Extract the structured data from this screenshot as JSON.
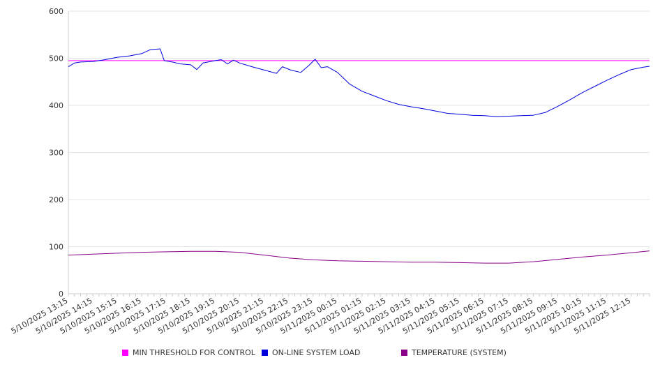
{
  "chart_data": {
    "type": "line",
    "title": "",
    "xlabel": "",
    "ylabel": "",
    "ylim": [
      0,
      600
    ],
    "y_ticks": [
      "0",
      "100",
      "200",
      "300",
      "400",
      "500",
      "600"
    ],
    "x_ticks": [
      "5/10/2025 13:15",
      "5/10/2025 14:15",
      "5/10/2025 15:15",
      "5/10/2025 16:15",
      "5/10/2025 17:15",
      "5/10/2025 18:15",
      "5/10/2025 19:15",
      "5/10/2025 20:15",
      "5/10/2025 21:15",
      "5/10/2025 22:15",
      "5/10/2025 23:15",
      "5/11/2025 00:15",
      "5/11/2025 01:15",
      "5/11/2025 02:15",
      "5/11/2025 03:15",
      "5/11/2025 04:15",
      "5/11/2025 05:15",
      "5/11/2025 06:15",
      "5/11/2025 07:15",
      "5/11/2025 08:15",
      "5/11/2025 09:15",
      "5/11/2025 10:15",
      "5/11/2025 11:15",
      "5/11/2025 12:15"
    ],
    "x_range": [
      "5/10/2025 13:15",
      "5/11/2025 13:00"
    ],
    "grid": "horizontal",
    "legend_position": "bottom",
    "series": [
      {
        "name": "MIN THRESHOLD FOR CONTROL",
        "color": "#ff00ff",
        "points": [
          [
            "5/10/2025 13:15",
            495
          ],
          [
            "5/11/2025 13:00",
            495
          ]
        ]
      },
      {
        "name": "ON-LINE SYSTEM LOAD",
        "color": "#0000dd",
        "points": [
          [
            "5/10/2025 13:15",
            482
          ],
          [
            "5/10/2025 13:30",
            490
          ],
          [
            "5/10/2025 13:45",
            492
          ],
          [
            "5/10/2025 14:15",
            493
          ],
          [
            "5/10/2025 14:45",
            497
          ],
          [
            "5/10/2025 15:15",
            502
          ],
          [
            "5/10/2025 15:45",
            505
          ],
          [
            "5/10/2025 16:15",
            510
          ],
          [
            "5/10/2025 16:35",
            518
          ],
          [
            "5/10/2025 17:00",
            520
          ],
          [
            "5/10/2025 17:10",
            495
          ],
          [
            "5/10/2025 17:30",
            492
          ],
          [
            "5/10/2025 17:50",
            488
          ],
          [
            "5/10/2025 18:15",
            486
          ],
          [
            "5/10/2025 18:30",
            476
          ],
          [
            "5/10/2025 18:45",
            490
          ],
          [
            "5/10/2025 19:15",
            495
          ],
          [
            "5/10/2025 19:30",
            497
          ],
          [
            "5/10/2025 19:45",
            488
          ],
          [
            "5/10/2025 20:00",
            496
          ],
          [
            "5/10/2025 20:15",
            490
          ],
          [
            "5/10/2025 20:45",
            482
          ],
          [
            "5/10/2025 21:15",
            475
          ],
          [
            "5/10/2025 21:45",
            468
          ],
          [
            "5/10/2025 22:00",
            482
          ],
          [
            "5/10/2025 22:20",
            475
          ],
          [
            "5/10/2025 22:45",
            470
          ],
          [
            "5/10/2025 23:05",
            485
          ],
          [
            "5/10/2025 23:20",
            498
          ],
          [
            "5/10/2025 23:35",
            480
          ],
          [
            "5/10/2025 23:50",
            482
          ],
          [
            "5/11/2025 00:15",
            470
          ],
          [
            "5/11/2025 00:45",
            445
          ],
          [
            "5/11/2025 01:15",
            430
          ],
          [
            "5/11/2025 01:45",
            420
          ],
          [
            "5/11/2025 02:15",
            410
          ],
          [
            "5/11/2025 02:45",
            402
          ],
          [
            "5/11/2025 03:15",
            397
          ],
          [
            "5/11/2025 03:45",
            393
          ],
          [
            "5/11/2025 04:15",
            388
          ],
          [
            "5/11/2025 04:45",
            383
          ],
          [
            "5/11/2025 05:15",
            381
          ],
          [
            "5/11/2025 05:45",
            379
          ],
          [
            "5/11/2025 06:15",
            378
          ],
          [
            "5/11/2025 06:45",
            376
          ],
          [
            "5/11/2025 07:15",
            377
          ],
          [
            "5/11/2025 07:45",
            378
          ],
          [
            "5/11/2025 08:15",
            379
          ],
          [
            "5/11/2025 08:45",
            385
          ],
          [
            "5/11/2025 09:15",
            398
          ],
          [
            "5/11/2025 09:45",
            412
          ],
          [
            "5/11/2025 10:15",
            427
          ],
          [
            "5/11/2025 10:45",
            440
          ],
          [
            "5/11/2025 11:15",
            453
          ],
          [
            "5/11/2025 11:45",
            465
          ],
          [
            "5/11/2025 12:15",
            476
          ],
          [
            "5/11/2025 12:45",
            481
          ],
          [
            "5/11/2025 13:00",
            483
          ],
          [
            "5/11/2025 13:00",
            483
          ]
        ]
      },
      {
        "name": "TEMPERATURE (SYSTEM)",
        "color": "#880088",
        "points": [
          [
            "5/10/2025 13:15",
            82
          ],
          [
            "5/10/2025 14:15",
            84
          ],
          [
            "5/10/2025 15:15",
            86
          ],
          [
            "5/10/2025 16:15",
            88
          ],
          [
            "5/10/2025 17:15",
            89
          ],
          [
            "5/10/2025 18:15",
            90
          ],
          [
            "5/10/2025 19:15",
            90
          ],
          [
            "5/10/2025 20:15",
            88
          ],
          [
            "5/10/2025 21:15",
            82
          ],
          [
            "5/10/2025 22:15",
            76
          ],
          [
            "5/10/2025 23:15",
            72
          ],
          [
            "5/11/2025 00:15",
            70
          ],
          [
            "5/11/2025 01:15",
            69
          ],
          [
            "5/11/2025 02:15",
            68
          ],
          [
            "5/11/2025 03:15",
            67
          ],
          [
            "5/11/2025 04:15",
            67
          ],
          [
            "5/11/2025 05:15",
            66
          ],
          [
            "5/11/2025 06:15",
            65
          ],
          [
            "5/11/2025 07:15",
            65
          ],
          [
            "5/11/2025 08:15",
            68
          ],
          [
            "5/11/2025 09:15",
            73
          ],
          [
            "5/11/2025 10:15",
            78
          ],
          [
            "5/11/2025 11:15",
            82
          ],
          [
            "5/11/2025 12:15",
            87
          ],
          [
            "5/11/2025 13:00",
            91
          ]
        ]
      }
    ]
  }
}
